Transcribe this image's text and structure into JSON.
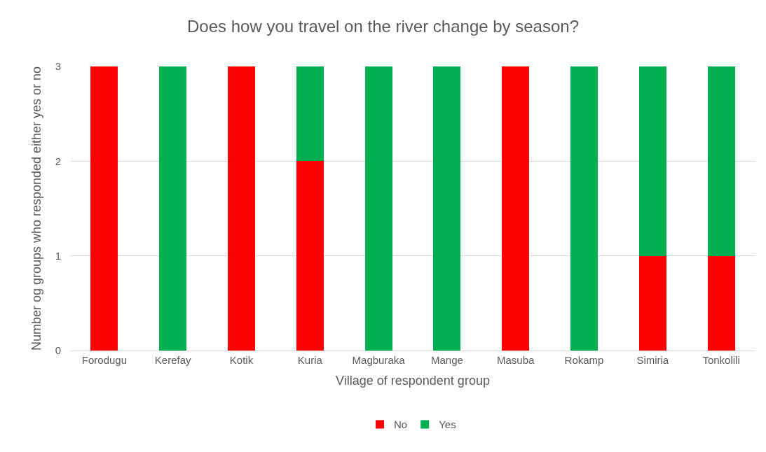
{
  "chart_data": {
    "type": "bar",
    "title": "Does how you travel on the river change by season?",
    "xlabel": "Village of respondent group",
    "ylabel": "Number og groups who responded either yes or no",
    "categories": [
      "Forodugu",
      "Kerefay",
      "Kotik",
      "Kuria",
      "Magburaka",
      "Mange",
      "Masuba",
      "Rokamp",
      "Simiria",
      "Tonkolili"
    ],
    "series": [
      {
        "name": "No",
        "color": "#ff0000",
        "values": [
          3,
          0,
          3,
          2,
          0,
          0,
          3,
          0,
          1,
          1
        ]
      },
      {
        "name": "Yes",
        "color": "#00b050",
        "values": [
          0,
          3,
          0,
          1,
          3,
          3,
          0,
          3,
          2,
          2
        ]
      }
    ],
    "stacked": true,
    "ylim": [
      0,
      3
    ],
    "yticks": [
      0,
      1,
      2,
      3
    ],
    "grid": "y",
    "legend": "bottom"
  }
}
